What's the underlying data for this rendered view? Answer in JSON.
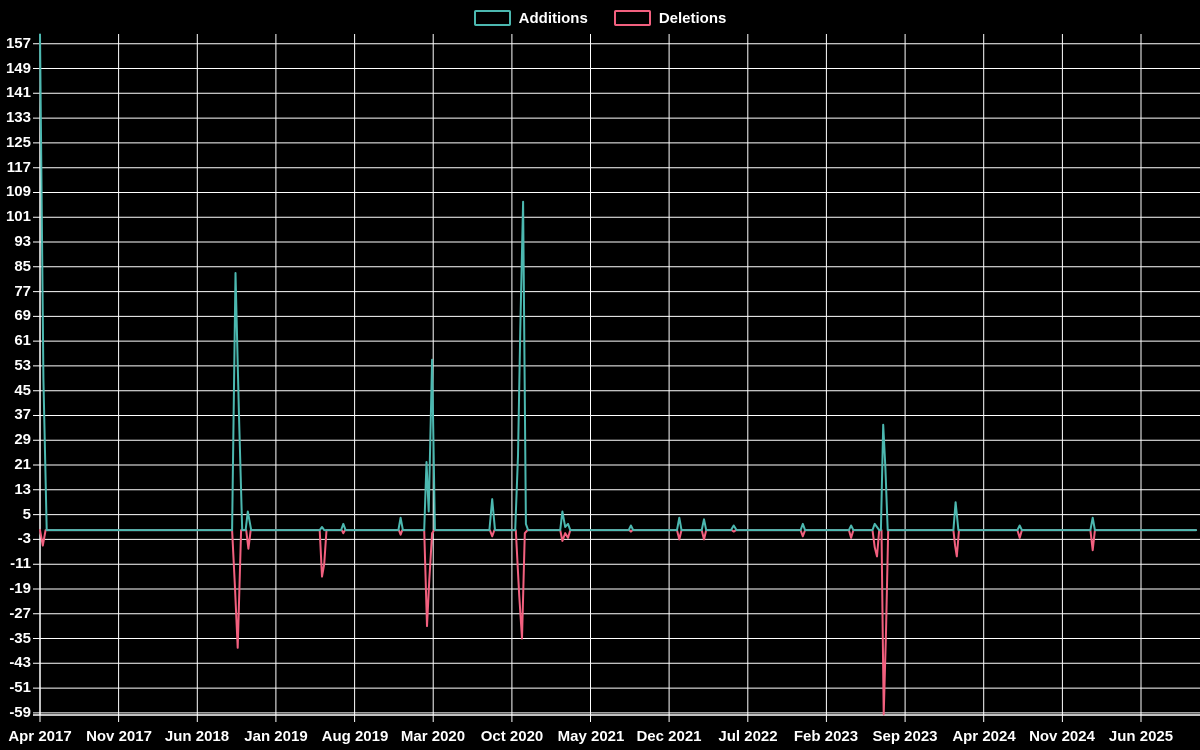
{
  "legend": {
    "items": [
      {
        "label": "Additions",
        "color": "#4cb8b0"
      },
      {
        "label": "Deletions",
        "color": "#f2607f"
      }
    ]
  },
  "chart_data": {
    "type": "line",
    "title": "",
    "xlabel": "",
    "ylabel": "",
    "background": "#000000",
    "grid": true,
    "grid_color": "#ffffff",
    "legend_position": "top-center",
    "x_unit": "months since Apr 2017 (fractional = weekly points)",
    "x_start_label": "Apr 2017",
    "xticks": [
      "Apr 2017",
      "Nov 2017",
      "Jun 2018",
      "Jan 2019",
      "Aug 2019",
      "Mar 2020",
      "Oct 2020",
      "May 2021",
      "Dec 2021",
      "Jul 2022",
      "Feb 2023",
      "Sep 2023",
      "Apr 2024",
      "Nov 2024",
      "Jun 2025"
    ],
    "xtick_step_months": 7,
    "yticks": [
      157,
      149,
      141,
      133,
      125,
      117,
      109,
      101,
      93,
      85,
      77,
      69,
      61,
      53,
      45,
      37,
      29,
      21,
      13,
      5,
      -3,
      -11,
      -19,
      -27,
      -35,
      -43,
      -51,
      -59
    ],
    "ylim": [
      -60,
      160
    ],
    "xlim_months": [
      0,
      102.9
    ],
    "series": [
      {
        "name": "Additions",
        "color": "#4cb8b0",
        "points": [
          [
            0,
            160
          ],
          [
            0.3,
            49
          ],
          [
            0.6,
            0
          ],
          [
            17.1,
            0
          ],
          [
            17.4,
            83
          ],
          [
            17.7,
            38
          ],
          [
            18.0,
            0
          ],
          [
            18.3,
            0
          ],
          [
            18.5,
            6
          ],
          [
            18.8,
            0
          ],
          [
            24.9,
            0
          ],
          [
            25.1,
            1
          ],
          [
            25.3,
            0
          ],
          [
            26.8,
            0
          ],
          [
            27.0,
            2
          ],
          [
            27.2,
            0
          ],
          [
            31.9,
            0
          ],
          [
            32.1,
            4
          ],
          [
            32.3,
            0
          ],
          [
            34.2,
            0
          ],
          [
            34.4,
            22
          ],
          [
            34.6,
            6
          ],
          [
            34.9,
            55
          ],
          [
            35.15,
            0
          ],
          [
            40.0,
            0
          ],
          [
            40.25,
            10
          ],
          [
            40.5,
            0
          ],
          [
            42.3,
            0
          ],
          [
            42.55,
            24
          ],
          [
            42.75,
            65
          ],
          [
            43.0,
            106
          ],
          [
            43.25,
            2
          ],
          [
            43.45,
            0
          ],
          [
            46.3,
            0
          ],
          [
            46.5,
            6
          ],
          [
            46.75,
            1
          ],
          [
            47.0,
            2
          ],
          [
            47.2,
            0
          ],
          [
            52.4,
            0
          ],
          [
            52.6,
            1.5
          ],
          [
            52.8,
            0
          ],
          [
            56.7,
            0
          ],
          [
            56.9,
            4
          ],
          [
            57.1,
            0
          ],
          [
            58.9,
            0
          ],
          [
            59.1,
            3.5
          ],
          [
            59.3,
            0
          ],
          [
            61.5,
            0
          ],
          [
            61.75,
            1.5
          ],
          [
            62.0,
            0
          ],
          [
            67.7,
            0
          ],
          [
            67.9,
            2
          ],
          [
            68.1,
            0
          ],
          [
            72.0,
            0
          ],
          [
            72.2,
            1.5
          ],
          [
            72.4,
            0
          ],
          [
            74.1,
            0
          ],
          [
            74.3,
            2
          ],
          [
            74.5,
            1
          ],
          [
            74.7,
            0
          ],
          [
            74.85,
            0
          ],
          [
            75.05,
            34
          ],
          [
            75.25,
            20
          ],
          [
            75.45,
            0
          ],
          [
            81.3,
            0
          ],
          [
            81.5,
            9
          ],
          [
            81.75,
            0
          ],
          [
            87.0,
            0
          ],
          [
            87.2,
            1.5
          ],
          [
            87.4,
            0
          ],
          [
            93.5,
            0
          ],
          [
            93.7,
            4
          ],
          [
            93.9,
            0
          ],
          [
            102.9,
            0
          ]
        ]
      },
      {
        "name": "Deletions",
        "color": "#f2607f",
        "points": [
          [
            0,
            0
          ],
          [
            0.25,
            -5
          ],
          [
            0.5,
            0
          ],
          [
            17.1,
            0
          ],
          [
            17.35,
            -18
          ],
          [
            17.6,
            -38
          ],
          [
            17.9,
            0
          ],
          [
            18.35,
            0
          ],
          [
            18.55,
            -6
          ],
          [
            18.75,
            0
          ],
          [
            24.9,
            0
          ],
          [
            25.1,
            -15
          ],
          [
            25.3,
            -11
          ],
          [
            25.5,
            0
          ],
          [
            26.85,
            0
          ],
          [
            27.0,
            -1
          ],
          [
            27.15,
            0
          ],
          [
            31.95,
            0
          ],
          [
            32.1,
            -1.5
          ],
          [
            32.25,
            0
          ],
          [
            34.2,
            0
          ],
          [
            34.45,
            -31
          ],
          [
            34.65,
            -16
          ],
          [
            34.9,
            -1
          ],
          [
            35.1,
            0
          ],
          [
            40.05,
            0
          ],
          [
            40.25,
            -2
          ],
          [
            40.45,
            0
          ],
          [
            42.35,
            0
          ],
          [
            42.65,
            -21
          ],
          [
            42.9,
            -35
          ],
          [
            43.15,
            -1
          ],
          [
            43.4,
            0
          ],
          [
            46.3,
            0
          ],
          [
            46.5,
            -3.5
          ],
          [
            46.75,
            -1
          ],
          [
            47.0,
            -2.5
          ],
          [
            47.2,
            0
          ],
          [
            52.45,
            0
          ],
          [
            52.6,
            -0.5
          ],
          [
            52.75,
            0
          ],
          [
            56.7,
            0
          ],
          [
            56.9,
            -3
          ],
          [
            57.1,
            0
          ],
          [
            58.9,
            0
          ],
          [
            59.1,
            -3
          ],
          [
            59.3,
            0
          ],
          [
            61.55,
            0
          ],
          [
            61.75,
            -0.5
          ],
          [
            61.95,
            0
          ],
          [
            67.7,
            0
          ],
          [
            67.9,
            -2
          ],
          [
            68.1,
            0
          ],
          [
            72.0,
            0
          ],
          [
            72.2,
            -2.5
          ],
          [
            72.4,
            0
          ],
          [
            74.1,
            0
          ],
          [
            74.3,
            -5.5
          ],
          [
            74.5,
            -8.5
          ],
          [
            74.7,
            0
          ],
          [
            74.9,
            0
          ],
          [
            75.1,
            -59.5
          ],
          [
            75.3,
            -33
          ],
          [
            75.5,
            0
          ],
          [
            81.3,
            0
          ],
          [
            81.45,
            -5
          ],
          [
            81.6,
            -8.5
          ],
          [
            81.8,
            0
          ],
          [
            87.0,
            0
          ],
          [
            87.2,
            -2.5
          ],
          [
            87.4,
            0
          ],
          [
            93.5,
            0
          ],
          [
            93.7,
            -6.5
          ],
          [
            93.9,
            0
          ],
          [
            102.9,
            0
          ]
        ]
      }
    ]
  }
}
